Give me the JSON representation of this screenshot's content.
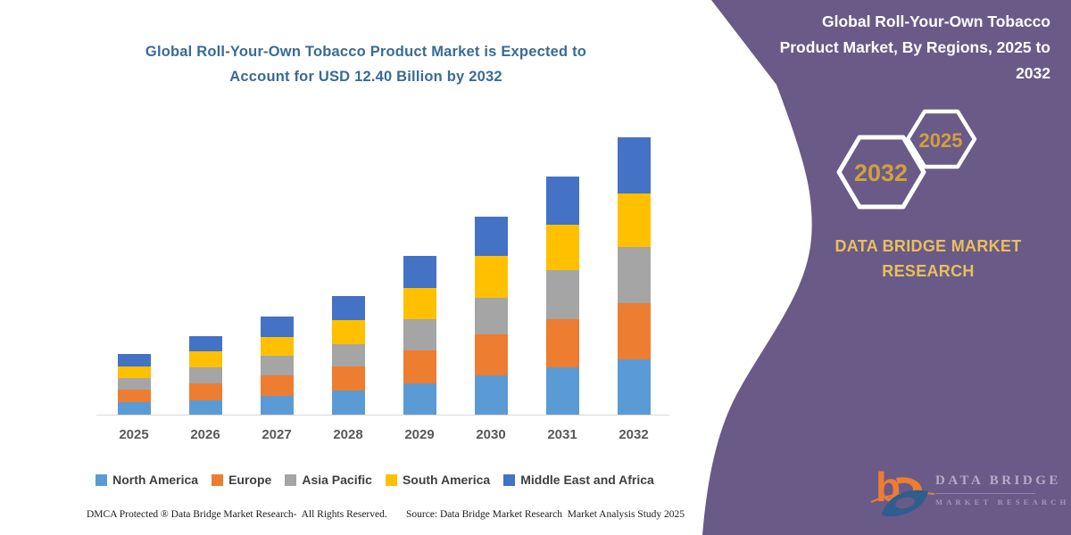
{
  "header": {
    "left_title_line1": "Global Roll-Your-Own Tobacco Product Market is Expected to",
    "left_title_line2": "Account for USD 12.40 Billion by 2032",
    "left_title_color": "#3A6B94"
  },
  "chart_data": {
    "type": "bar",
    "stacked": true,
    "title": "Global Roll-Your-Own Tobacco Product Market is Expected to Account for USD 12.40 Billion by 2032",
    "unit": "USD Billion",
    "categories": [
      "2025",
      "2026",
      "2027",
      "2028",
      "2029",
      "2030",
      "2031",
      "2032"
    ],
    "series": [
      {
        "name": "North America",
        "color": "#5B9BD5",
        "values": [
          0.57,
          0.63,
          0.85,
          1.06,
          1.4,
          1.75,
          2.13,
          2.47
        ]
      },
      {
        "name": "Europe",
        "color": "#ED7D31",
        "values": [
          0.56,
          0.77,
          0.9,
          1.09,
          1.46,
          1.83,
          2.13,
          2.52
        ]
      },
      {
        "name": "Asia Pacific",
        "color": "#A5A5A5",
        "values": [
          0.51,
          0.73,
          0.9,
          1.01,
          1.4,
          1.66,
          2.19,
          2.52
        ]
      },
      {
        "name": "South America",
        "color": "#FFC000",
        "values": [
          0.53,
          0.71,
          0.82,
          1.09,
          1.4,
          1.86,
          2.06,
          2.39
        ]
      },
      {
        "name": "Middle East and Africa",
        "color": "#4472C4",
        "values": [
          0.53,
          0.67,
          0.93,
          1.06,
          1.44,
          1.75,
          2.13,
          2.5
        ]
      }
    ],
    "totals": [
      2.7,
      3.51,
      4.4,
      5.31,
      7.1,
      8.85,
      10.64,
      12.4
    ],
    "ylim": [
      0,
      13
    ],
    "grid": false,
    "y_axis_visible": false,
    "legend_position": "bottom",
    "axis_line_color": "#D9D9D9",
    "x_tick_color": "#595959"
  },
  "right_panel": {
    "background_color": "#695A88",
    "title_lines": [
      "Global Roll-Your-Own Tobacco",
      "Product Market, By Regions, 2025 to",
      "2032"
    ],
    "hexagons": [
      {
        "year": "2032"
      },
      {
        "year": "2025"
      }
    ],
    "hexagon_year_color": "#D2A03C",
    "brand_name_line1": "DATA BRIDGE MARKET",
    "brand_name_line2": "RESEARCH",
    "brand_color": "#E8C05A",
    "logo_text_line1": "DATA BRIDGE",
    "logo_text_line2": "MARKET RESEARCH"
  },
  "footer": {
    "left": "DMCA Protected ® Data Bridge Market Research-  All Rights Reserved.",
    "right": "Source: Data Bridge Market Research  Market Analysis Study 2025"
  }
}
